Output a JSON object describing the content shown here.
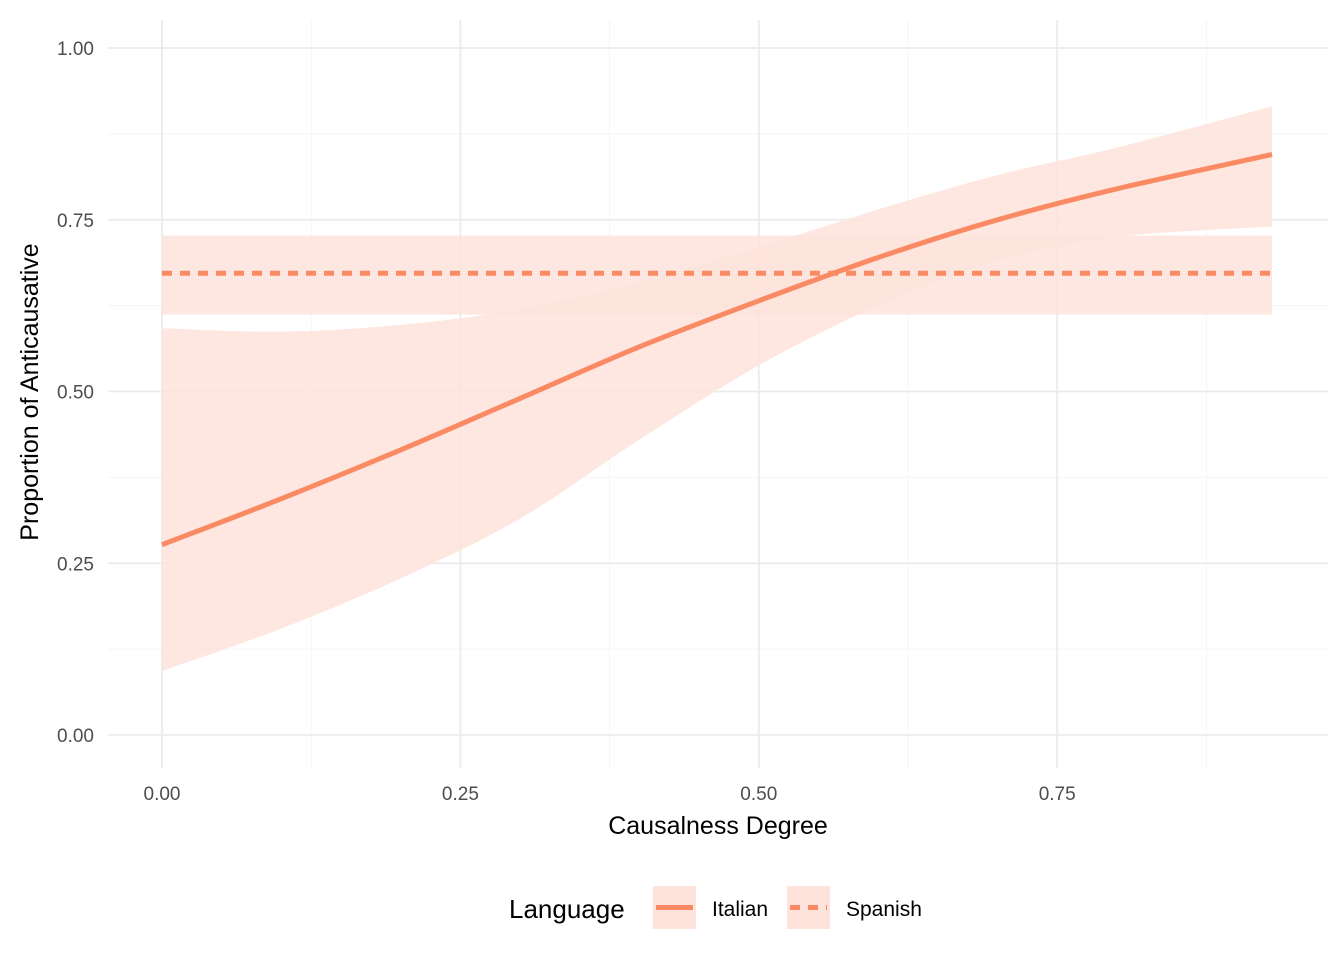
{
  "chart_data": {
    "type": "line",
    "xlabel": "Causalness Degree",
    "ylabel": "Proportion of Anticausative",
    "xlim": [
      -0.045,
      0.97
    ],
    "ylim": [
      0.0,
      1.0
    ],
    "x_ticks": [
      0.0,
      0.25,
      0.5,
      0.75
    ],
    "x_tick_labels": [
      "0.00",
      "0.25",
      "0.50",
      "0.75"
    ],
    "y_ticks": [
      0.0,
      0.25,
      0.5,
      0.75,
      1.0
    ],
    "y_tick_labels": [
      "0.00",
      "0.25",
      "0.50",
      "0.75",
      "1.00"
    ],
    "grid": true,
    "legend": {
      "title": "Language",
      "position": "bottom",
      "entries": [
        "Italian",
        "Spanish"
      ]
    },
    "colors": {
      "line": "#fa8a63",
      "band": "#fde3db",
      "grid_major": "#ebebeb",
      "grid_minor": "#f4f4f4"
    },
    "series": [
      {
        "name": "Italian",
        "linetype": "solid",
        "x": [
          0.0,
          0.1,
          0.2,
          0.3,
          0.4,
          0.5,
          0.6,
          0.7,
          0.8,
          0.93
        ],
        "y": [
          0.277,
          0.344,
          0.415,
          0.49,
          0.565,
          0.632,
          0.695,
          0.75,
          0.795,
          0.845
        ],
        "lower": [
          0.093,
          0.155,
          0.228,
          0.315,
          0.43,
          0.538,
          0.625,
          0.69,
          0.725,
          0.74
        ],
        "upper": [
          0.592,
          0.587,
          0.597,
          0.62,
          0.66,
          0.71,
          0.765,
          0.815,
          0.855,
          0.915
        ]
      },
      {
        "name": "Spanish",
        "linetype": "dashed",
        "x": [
          0.0,
          0.93
        ],
        "y": [
          0.672,
          0.672
        ],
        "lower": [
          0.612,
          0.612
        ],
        "upper": [
          0.727,
          0.727
        ]
      }
    ]
  }
}
